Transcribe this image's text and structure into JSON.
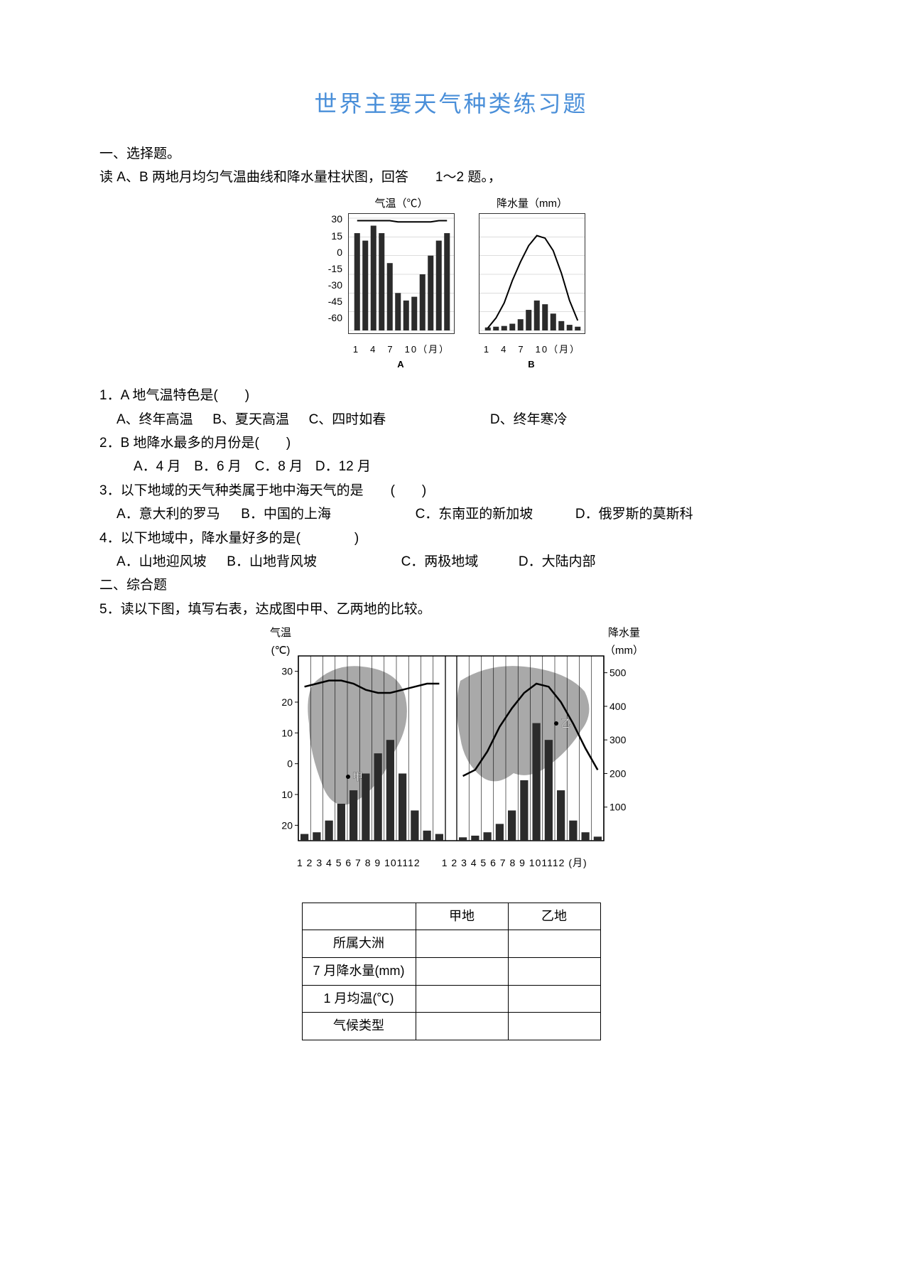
{
  "title": "世界主要天气种类练习题",
  "section1_heading": "一、选择题。",
  "intro_line": "读 A、B 两地月均匀气温曲线和降水量柱状图，回答　　1～2 题。，",
  "chart1": {
    "left_title": "气温（℃）",
    "right_title": "降水量（mm）",
    "y_ticks": [
      "30",
      "15",
      "0",
      "-15",
      "-30",
      "-45",
      "-60"
    ],
    "month_label_A": "1　4　7　10（月）",
    "month_label_B": "1　4　7　10（月）",
    "label_A": "A",
    "label_B": "B",
    "A_temp": [
      28,
      28,
      28,
      28,
      28,
      27,
      27,
      27,
      27,
      27,
      28,
      28
    ],
    "A_precip": [
      260,
      240,
      280,
      260,
      180,
      100,
      80,
      90,
      150,
      200,
      240,
      260
    ],
    "B_temp": [
      -58,
      -50,
      -38,
      -20,
      -5,
      8,
      16,
      14,
      4,
      -14,
      -36,
      -52
    ],
    "B_precip": [
      8,
      10,
      12,
      18,
      30,
      55,
      80,
      70,
      45,
      25,
      15,
      10
    ]
  },
  "q1": {
    "stem": "1．A 地气温特色是(　　)",
    "optA": "A、终年高温",
    "optB": "B、夏天高温",
    "optC": "C、四时如春",
    "optD": "D、终年寒冷"
  },
  "q2": {
    "stem": "2．B 地降水最多的月份是(　　)",
    "optA": "A．4 月",
    "optB": "B．6 月",
    "optC": "C．8 月",
    "optD": "D．12 月"
  },
  "q3": {
    "stem": "3．以下地域的天气种类属于地中海天气的是　　(　　)",
    "optA": "A．意大利的罗马",
    "optB": "B．中国的上海",
    "optC": "C．东南亚的新加坡",
    "optD": "D．俄罗斯的莫斯科"
  },
  "q4": {
    "stem": "4．以下地域中，降水量好多的是(　　　　)",
    "optA": "A．山地迎风坡",
    "optB": "B．山地背风坡",
    "optC": "C．两极地域",
    "optD": "D．大陆内部"
  },
  "section2_heading": "二、综合题",
  "q5_stem": "5．读以下图，填写右表，达成图中甲、乙两地的比较。",
  "chart2": {
    "left_label_top": "气温",
    "left_label_unit": "(℃)",
    "right_label_top": "降水量",
    "right_label_unit": "（mm）",
    "temp_ticks": [
      "30",
      "20",
      "10",
      "0",
      "10",
      "20"
    ],
    "precip_ticks": [
      "500",
      "400",
      "300",
      "200",
      "100"
    ],
    "month_row": "1 2 3 4 5 6 7 8 9 101112　　1 2 3 4 5 6 7 8 9 101112 (月)",
    "jia_temp": [
      25,
      26,
      27,
      27,
      26,
      24,
      23,
      23,
      24,
      25,
      26,
      26
    ],
    "jia_precip": [
      20,
      25,
      60,
      110,
      150,
      200,
      260,
      300,
      200,
      90,
      30,
      20
    ],
    "yi_temp": [
      -4,
      -2,
      4,
      12,
      18,
      23,
      26,
      25,
      20,
      13,
      5,
      -2
    ],
    "yi_precip": [
      10,
      15,
      25,
      50,
      90,
      180,
      350,
      300,
      150,
      60,
      25,
      12
    ],
    "mark_jia": "甲",
    "mark_yi": "乙"
  },
  "table": {
    "col1": "甲地",
    "col2": "乙地",
    "row1": "所属大洲",
    "row2": "7 月降水量(mm)",
    "row3": "1 月均温(℃)",
    "row4": "气候类型"
  },
  "colors": {
    "title": "#4a8fd9",
    "text": "#000000",
    "chart_line": "#000000",
    "chart_fill": "#2b2b2b",
    "map_fill": "#9a9a9a"
  }
}
